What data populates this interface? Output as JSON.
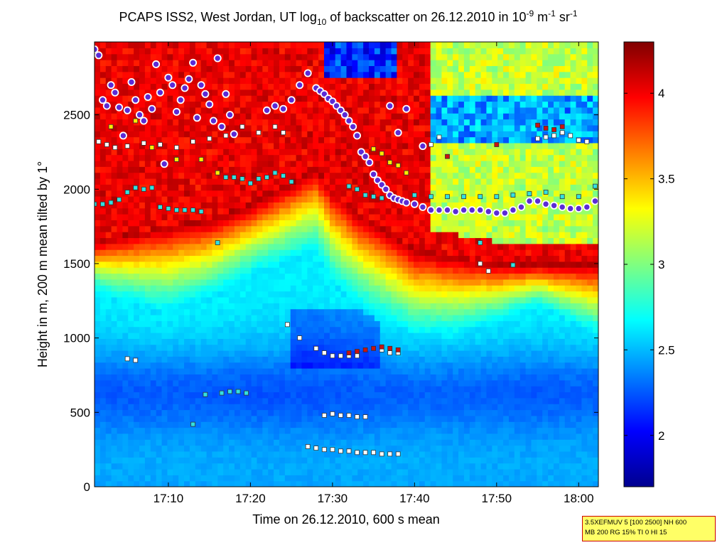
{
  "chart_data": {
    "type": "heatmap",
    "title": {
      "text_before": "PCAPS ISS2, West Jordan, UT log",
      "subscript": "10",
      "text_mid": " of backscatter on 26.12.2010 in 10",
      "superscript1": "-9",
      "text_mid2": " m",
      "superscript2": "-1",
      "text_mid3": " sr",
      "superscript3": "-1"
    },
    "xlabel": "Time on 26.12.2010, 600 s mean",
    "ylabel": "Height in m, 200 m mean tilted by 1°",
    "xlim_minutes": [
      1021,
      1082.4
    ],
    "ylim": [
      0,
      2990
    ],
    "x_ticks": [
      {
        "minute": 1030,
        "label": "17:10"
      },
      {
        "minute": 1040,
        "label": "17:20"
      },
      {
        "minute": 1050,
        "label": "17:30"
      },
      {
        "minute": 1060,
        "label": "17:40"
      },
      {
        "minute": 1070,
        "label": "17:50"
      },
      {
        "minute": 1080,
        "label": "18:00"
      }
    ],
    "y_ticks": [
      0,
      500,
      1000,
      1500,
      2000,
      2500
    ],
    "colorbar": {
      "range": [
        1.7,
        4.3
      ],
      "ticks": [
        "2",
        "2.5",
        "3",
        "3.5",
        "4"
      ],
      "colormap": "jet"
    },
    "layer_profiles": {
      "minutes": [
        1021,
        1025,
        1030,
        1035,
        1040,
        1045,
        1048,
        1050,
        1053,
        1056,
        1060,
        1065,
        1070,
        1075,
        1082.4
      ],
      "boundary_layer_top_m": [
        1650,
        1700,
        1760,
        1800,
        1900,
        2050,
        2150,
        2000,
        1850,
        1750,
        1600,
        1550,
        1500,
        1500,
        1500
      ],
      "lower_haze_top_m": [
        1300,
        1220,
        1150,
        1250,
        1400,
        1500,
        1550,
        1350,
        1200,
        1100,
        1000,
        1000,
        1100,
        1200,
        1000
      ]
    },
    "marker_series": [
      {
        "marker": "circle",
        "color": "#5b2bd6",
        "edge": "#ffffff",
        "points": [
          [
            1021,
            2940
          ],
          [
            1021.5,
            2900
          ],
          [
            1022,
            2600
          ],
          [
            1022.5,
            2560
          ],
          [
            1023,
            2700
          ],
          [
            1023.5,
            2650
          ],
          [
            1024,
            2550
          ],
          [
            1024.5,
            2360
          ],
          [
            1025,
            2530
          ],
          [
            1025.5,
            2720
          ],
          [
            1026,
            2600
          ],
          [
            1026.5,
            2500
          ],
          [
            1027,
            2460
          ],
          [
            1027.5,
            2620
          ],
          [
            1028,
            2540
          ],
          [
            1028.5,
            2840
          ],
          [
            1029,
            2650
          ],
          [
            1029.5,
            2170
          ],
          [
            1030,
            2750
          ],
          [
            1030.5,
            2700
          ],
          [
            1031,
            2520
          ],
          [
            1031.5,
            2600
          ],
          [
            1032,
            2680
          ],
          [
            1032.5,
            2740
          ],
          [
            1033,
            2850
          ],
          [
            1033.5,
            2480
          ],
          [
            1034,
            2700
          ],
          [
            1034.5,
            2640
          ],
          [
            1035,
            2570
          ],
          [
            1035.5,
            2460
          ],
          [
            1036,
            2880
          ],
          [
            1036.5,
            2420
          ],
          [
            1037,
            2640
          ],
          [
            1037.5,
            2500
          ],
          [
            1038,
            2370
          ],
          [
            1042,
            2530
          ],
          [
            1043,
            2560
          ],
          [
            1044,
            2540
          ],
          [
            1045,
            2600
          ],
          [
            1046,
            2700
          ],
          [
            1047,
            2780
          ],
          [
            1048,
            2680
          ],
          [
            1048.5,
            2660
          ],
          [
            1049,
            2640
          ],
          [
            1049.5,
            2610
          ],
          [
            1050,
            2590
          ],
          [
            1050.5,
            2560
          ],
          [
            1051,
            2530
          ],
          [
            1051.5,
            2500
          ],
          [
            1052,
            2460
          ],
          [
            1052.5,
            2420
          ],
          [
            1053,
            2360
          ],
          [
            1053.5,
            2250
          ],
          [
            1054,
            2220
          ],
          [
            1054.5,
            2180
          ],
          [
            1055,
            2100
          ],
          [
            1055.5,
            2060
          ],
          [
            1056,
            2030
          ],
          [
            1056.5,
            2000
          ],
          [
            1057,
            1960
          ],
          [
            1057.5,
            1940
          ],
          [
            1058,
            1930
          ],
          [
            1058.5,
            1920
          ],
          [
            1059,
            1910
          ],
          [
            1060,
            1900
          ],
          [
            1061,
            1880
          ],
          [
            1062,
            1860
          ],
          [
            1063,
            1860
          ],
          [
            1064,
            1860
          ],
          [
            1065,
            1850
          ],
          [
            1066,
            1860
          ],
          [
            1067,
            1860
          ],
          [
            1068,
            1860
          ],
          [
            1069,
            1850
          ],
          [
            1070,
            1840
          ],
          [
            1071,
            1840
          ],
          [
            1072,
            1860
          ],
          [
            1073,
            1880
          ],
          [
            1074,
            1920
          ],
          [
            1075,
            1920
          ],
          [
            1076,
            1900
          ],
          [
            1077,
            1890
          ],
          [
            1078,
            1880
          ],
          [
            1079,
            1870
          ],
          [
            1080,
            1870
          ],
          [
            1081,
            1880
          ],
          [
            1082,
            1920
          ],
          [
            1057,
            2560
          ],
          [
            1058,
            2380
          ],
          [
            1059,
            2540
          ],
          [
            1061,
            2290
          ]
        ]
      },
      {
        "marker": "square",
        "color": "#ffffff",
        "edge": "#333333",
        "points": [
          [
            1021.5,
            2320
          ],
          [
            1022.5,
            2300
          ],
          [
            1023.5,
            2280
          ],
          [
            1025,
            2290
          ],
          [
            1027,
            2310
          ],
          [
            1029,
            2300
          ],
          [
            1031,
            2280
          ],
          [
            1033,
            2320
          ],
          [
            1035,
            2340
          ],
          [
            1037,
            2360
          ],
          [
            1039,
            2420
          ],
          [
            1041,
            2380
          ],
          [
            1043,
            2420
          ],
          [
            1044,
            2380
          ],
          [
            1062,
            2300
          ],
          [
            1063,
            2350
          ],
          [
            1075,
            2340
          ],
          [
            1076,
            2350
          ],
          [
            1077,
            2360
          ],
          [
            1078,
            2380
          ],
          [
            1079,
            2360
          ],
          [
            1080,
            2330
          ],
          [
            1081,
            2320
          ],
          [
            1044.5,
            1090
          ],
          [
            1046,
            1000
          ],
          [
            1048,
            930
          ],
          [
            1049,
            900
          ],
          [
            1050,
            880
          ],
          [
            1051,
            880
          ],
          [
            1052,
            880
          ],
          [
            1053,
            880
          ],
          [
            1056,
            920
          ],
          [
            1057,
            900
          ],
          [
            1058,
            900
          ],
          [
            1049,
            480
          ],
          [
            1050,
            490
          ],
          [
            1051,
            480
          ],
          [
            1052,
            480
          ],
          [
            1053,
            470
          ],
          [
            1054,
            470
          ],
          [
            1047,
            270
          ],
          [
            1048,
            260
          ],
          [
            1049,
            250
          ],
          [
            1050,
            250
          ],
          [
            1051,
            240
          ],
          [
            1052,
            240
          ],
          [
            1053,
            230
          ],
          [
            1054,
            230
          ],
          [
            1055,
            230
          ],
          [
            1056,
            220
          ],
          [
            1057,
            220
          ],
          [
            1058,
            220
          ],
          [
            1068,
            1500
          ],
          [
            1069,
            1450
          ],
          [
            1025,
            860
          ],
          [
            1026,
            850
          ]
        ]
      },
      {
        "marker": "square",
        "color": "#33e0e0",
        "edge": "#333333",
        "points": [
          [
            1021,
            1900
          ],
          [
            1022,
            1900
          ],
          [
            1023,
            1910
          ],
          [
            1024,
            1930
          ],
          [
            1025,
            1980
          ],
          [
            1026,
            2010
          ],
          [
            1027,
            2000
          ],
          [
            1028,
            2010
          ],
          [
            1029,
            1880
          ],
          [
            1030,
            1870
          ],
          [
            1031,
            1860
          ],
          [
            1032,
            1860
          ],
          [
            1033,
            1860
          ],
          [
            1034,
            1850
          ],
          [
            1036,
            1640
          ],
          [
            1037,
            2080
          ],
          [
            1038,
            2080
          ],
          [
            1039,
            2070
          ],
          [
            1040,
            2040
          ],
          [
            1041,
            2070
          ],
          [
            1042,
            2080
          ],
          [
            1043,
            2110
          ],
          [
            1044,
            2090
          ],
          [
            1045,
            2050
          ],
          [
            1052,
            2020
          ],
          [
            1053,
            2000
          ],
          [
            1054,
            1960
          ],
          [
            1055,
            1950
          ],
          [
            1056,
            1940
          ],
          [
            1060,
            1960
          ],
          [
            1062,
            1950
          ],
          [
            1064,
            1950
          ],
          [
            1066,
            1950
          ],
          [
            1068,
            1950
          ],
          [
            1070,
            1950
          ],
          [
            1072,
            1960
          ],
          [
            1074,
            1970
          ],
          [
            1076,
            1980
          ],
          [
            1078,
            1950
          ],
          [
            1080,
            1950
          ],
          [
            1082,
            2020
          ],
          [
            1036.5,
            630
          ],
          [
            1037.5,
            640
          ],
          [
            1038.5,
            640
          ],
          [
            1039.5,
            630
          ],
          [
            1034.5,
            620
          ],
          [
            1033,
            420
          ],
          [
            1068,
            1640
          ],
          [
            1072,
            1490
          ]
        ]
      },
      {
        "marker": "square",
        "color": "#ffee00",
        "edge": "#333333",
        "points": [
          [
            1023,
            2420
          ],
          [
            1026,
            2460
          ],
          [
            1028,
            2280
          ],
          [
            1031,
            2200
          ],
          [
            1034,
            2200
          ],
          [
            1036,
            2110
          ],
          [
            1055,
            2270
          ],
          [
            1056,
            2240
          ],
          [
            1057,
            2180
          ],
          [
            1058,
            2160
          ],
          [
            1059,
            2110
          ]
        ]
      },
      {
        "marker": "square",
        "color": "#cc1111",
        "edge": "#333333",
        "points": [
          [
            1052,
            900
          ],
          [
            1053,
            910
          ],
          [
            1054,
            920
          ],
          [
            1055,
            930
          ],
          [
            1056,
            940
          ],
          [
            1057,
            930
          ],
          [
            1058,
            920
          ],
          [
            1075,
            2430
          ],
          [
            1076,
            2410
          ],
          [
            1077,
            2400
          ],
          [
            1078,
            2420
          ],
          [
            1070,
            2300
          ],
          [
            1064,
            2220
          ]
        ]
      }
    ]
  },
  "info_box": {
    "line1": "3.5XEFMUV 5 [100 2500] NH 600",
    "line2": "MB 200 RG 15% TI 0 HI 15"
  }
}
